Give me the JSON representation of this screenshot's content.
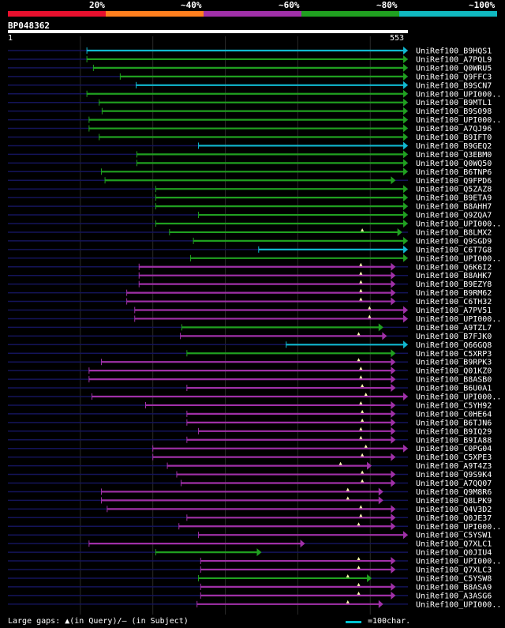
{
  "query": {
    "id": "BP048362",
    "start": "1",
    "end": "553"
  },
  "legend": [
    {
      "label": "20%",
      "color": "#e8102e"
    },
    {
      "label": "~40%",
      "color": "#ff7f1e"
    },
    {
      "label": "~60%",
      "color": "#a030a8"
    },
    {
      "label": "~80%",
      "color": "#20a020"
    },
    {
      "label": "~100%",
      "color": "#10b8c0"
    }
  ],
  "footer": {
    "gaps_text": "Large gaps: ▲(in Query)/– (in Subject)",
    "key_text": "=100char."
  },
  "colors": {
    "cyan": "#10b8d0",
    "green": "#20a020",
    "purple": "#a030a8",
    "track": "#14145a",
    "grid": "#2a2a2a"
  },
  "chart_data": {
    "type": "alignment-overview",
    "query_length": 553,
    "hits": [
      {
        "name": "UniRef100_B9HQS1",
        "start": 110,
        "end": 553,
        "c": "cyan",
        "m": []
      },
      {
        "name": "UniRef100_A7PQL9",
        "start": 110,
        "end": 553,
        "c": "green",
        "m": []
      },
      {
        "name": "UniRef100_Q0WRU5",
        "start": 119,
        "end": 553,
        "c": "green",
        "m": []
      },
      {
        "name": "UniRef100_Q9FFC3",
        "start": 156,
        "end": 553,
        "c": "green",
        "m": []
      },
      {
        "name": "UniRef100_B9SCN7",
        "start": 178,
        "end": 553,
        "c": "cyan",
        "m": []
      },
      {
        "name": "UniRef100_UPI000..",
        "start": 110,
        "end": 553,
        "c": "green",
        "m": []
      },
      {
        "name": "UniRef100_B9MTL1",
        "start": 127,
        "end": 553,
        "c": "green",
        "m": []
      },
      {
        "name": "UniRef100_B9S098",
        "start": 131,
        "end": 553,
        "c": "green",
        "m": []
      },
      {
        "name": "UniRef100_UPI000..",
        "start": 113,
        "end": 553,
        "c": "green",
        "m": []
      },
      {
        "name": "UniRef100_A7QJ96",
        "start": 113,
        "end": 553,
        "c": "green",
        "m": []
      },
      {
        "name": "UniRef100_B9IFT0",
        "start": 127,
        "end": 553,
        "c": "green",
        "m": []
      },
      {
        "name": "UniRef100_B9GEQ2",
        "start": 264,
        "end": 553,
        "c": "cyan",
        "m": []
      },
      {
        "name": "UniRef100_Q3EBM0",
        "start": 179,
        "end": 553,
        "c": "green",
        "m": []
      },
      {
        "name": "UniRef100_Q0WQ50",
        "start": 179,
        "end": 553,
        "c": "green",
        "m": []
      },
      {
        "name": "UniRef100_B6TNP6",
        "start": 130,
        "end": 553,
        "c": "green",
        "m": []
      },
      {
        "name": "UniRef100_Q9FPD6",
        "start": 135,
        "end": 536,
        "c": "green",
        "m": []
      },
      {
        "name": "UniRef100_Q5ZAZ8",
        "start": 205,
        "end": 553,
        "c": "green",
        "m": []
      },
      {
        "name": "UniRef100_B9ETA9",
        "start": 205,
        "end": 553,
        "c": "green",
        "m": []
      },
      {
        "name": "UniRef100_B8AHH7",
        "start": 205,
        "end": 553,
        "c": "green",
        "m": []
      },
      {
        "name": "UniRef100_Q9ZQA7",
        "start": 264,
        "end": 553,
        "c": "green",
        "m": []
      },
      {
        "name": "UniRef100_UPI000..",
        "start": 205,
        "end": 553,
        "c": "green",
        "m": []
      },
      {
        "name": "UniRef100_B8LMX2",
        "start": 224,
        "end": 545,
        "c": "green",
        "m": [
          490
        ]
      },
      {
        "name": "UniRef100_Q9SGD9",
        "start": 257,
        "end": 553,
        "c": "green",
        "m": []
      },
      {
        "name": "UniRef100_C6T7G8",
        "start": 347,
        "end": 553,
        "c": "cyan",
        "m": []
      },
      {
        "name": "UniRef100_UPI000..",
        "start": 253,
        "end": 553,
        "c": "green",
        "m": []
      },
      {
        "name": "UniRef100_Q6K6I2",
        "start": 182,
        "end": 536,
        "c": "purple",
        "m": [
          488
        ]
      },
      {
        "name": "UniRef100_B8AHK7",
        "start": 182,
        "end": 536,
        "c": "purple",
        "m": [
          488
        ]
      },
      {
        "name": "UniRef100_B9EZY8",
        "start": 182,
        "end": 536,
        "c": "purple",
        "m": [
          488
        ]
      },
      {
        "name": "UniRef100_B9RM62",
        "start": 165,
        "end": 536,
        "c": "purple",
        "m": [
          488
        ]
      },
      {
        "name": "UniRef100_C6TH32",
        "start": 165,
        "end": 536,
        "c": "purple",
        "m": [
          488
        ]
      },
      {
        "name": "UniRef100_A7PV51",
        "start": 176,
        "end": 553,
        "c": "purple",
        "m": [
          500
        ]
      },
      {
        "name": "UniRef100_UPI000..",
        "start": 176,
        "end": 553,
        "c": "purple",
        "m": [
          500
        ]
      },
      {
        "name": "UniRef100_A9TZL7",
        "start": 241,
        "end": 519,
        "c": "green",
        "m": []
      },
      {
        "name": "UniRef100_B7FJK0",
        "start": 239,
        "end": 524,
        "c": "purple",
        "m": [
          485
        ]
      },
      {
        "name": "UniRef100_Q66GQ8",
        "start": 385,
        "end": 553,
        "c": "cyan",
        "m": []
      },
      {
        "name": "UniRef100_C5XRP3",
        "start": 248,
        "end": 536,
        "c": "green",
        "m": []
      },
      {
        "name": "UniRef100_B9RPK3",
        "start": 130,
        "end": 536,
        "c": "purple",
        "m": [
          485
        ]
      },
      {
        "name": "UniRef100_Q01KZ0",
        "start": 113,
        "end": 536,
        "c": "purple",
        "m": [
          488
        ]
      },
      {
        "name": "UniRef100_B8ASB0",
        "start": 113,
        "end": 536,
        "c": "purple",
        "m": [
          488
        ]
      },
      {
        "name": "UniRef100_B6U0A1",
        "start": 248,
        "end": 536,
        "c": "purple",
        "m": [
          490
        ]
      },
      {
        "name": "UniRef100_UPI000..",
        "start": 117,
        "end": 553,
        "c": "purple",
        "m": [
          495
        ]
      },
      {
        "name": "UniRef100_C5YH92",
        "start": 191,
        "end": 536,
        "c": "purple",
        "m": [
          488
        ]
      },
      {
        "name": "UniRef100_C0HE64",
        "start": 248,
        "end": 536,
        "c": "purple",
        "m": [
          490
        ]
      },
      {
        "name": "UniRef100_B6TJN6",
        "start": 248,
        "end": 536,
        "c": "purple",
        "m": [
          490
        ]
      },
      {
        "name": "UniRef100_B9IQ29",
        "start": 264,
        "end": 536,
        "c": "purple",
        "m": [
          488
        ]
      },
      {
        "name": "UniRef100_B9IA88",
        "start": 248,
        "end": 536,
        "c": "purple",
        "m": [
          488
        ]
      },
      {
        "name": "UniRef100_C0PG04",
        "start": 201,
        "end": 553,
        "c": "purple",
        "m": [
          495
        ]
      },
      {
        "name": "UniRef100_C5XPE3",
        "start": 201,
        "end": 536,
        "c": "purple",
        "m": [
          490
        ]
      },
      {
        "name": "UniRef100_A9T4Z3",
        "start": 221,
        "end": 503,
        "c": "purple",
        "m": [
          460
        ]
      },
      {
        "name": "UniRef100_Q9S9K4",
        "start": 234,
        "end": 536,
        "c": "purple",
        "m": [
          490
        ]
      },
      {
        "name": "UniRef100_A7QQ07",
        "start": 240,
        "end": 536,
        "c": "purple",
        "m": [
          490
        ]
      },
      {
        "name": "UniRef100_Q9M8R6",
        "start": 130,
        "end": 519,
        "c": "purple",
        "m": [
          470
        ]
      },
      {
        "name": "UniRef100_Q8LPK9",
        "start": 130,
        "end": 519,
        "c": "purple",
        "m": [
          470
        ]
      },
      {
        "name": "UniRef100_Q4V3D2",
        "start": 138,
        "end": 536,
        "c": "purple",
        "m": [
          488
        ]
      },
      {
        "name": "UniRef100_Q0JE37",
        "start": 248,
        "end": 536,
        "c": "purple",
        "m": [
          488
        ]
      },
      {
        "name": "UniRef100_UPI000..",
        "start": 237,
        "end": 536,
        "c": "purple",
        "m": [
          485
        ]
      },
      {
        "name": "UniRef100_C5YSW1",
        "start": 264,
        "end": 553,
        "c": "purple",
        "m": []
      },
      {
        "name": "UniRef100_Q7XLC1",
        "start": 113,
        "end": 411,
        "c": "purple",
        "m": []
      },
      {
        "name": "UniRef100_Q0JIU4",
        "start": 205,
        "end": 351,
        "c": "green",
        "m": []
      },
      {
        "name": "UniRef100_UPI000..",
        "start": 267,
        "end": 536,
        "c": "purple",
        "m": [
          485
        ]
      },
      {
        "name": "UniRef100_Q7XLC3",
        "start": 267,
        "end": 536,
        "c": "purple",
        "m": [
          485
        ]
      },
      {
        "name": "UniRef100_C5YSW8",
        "start": 264,
        "end": 503,
        "c": "green",
        "m": [
          470
        ]
      },
      {
        "name": "UniRef100_B8ASA9",
        "start": 267,
        "end": 536,
        "c": "purple",
        "m": [
          485
        ]
      },
      {
        "name": "UniRef100_A3ASG6",
        "start": 267,
        "end": 536,
        "c": "purple",
        "m": [
          485
        ]
      },
      {
        "name": "UniRef100_UPI000..",
        "start": 262,
        "end": 519,
        "c": "purple",
        "m": [
          470
        ]
      }
    ]
  }
}
